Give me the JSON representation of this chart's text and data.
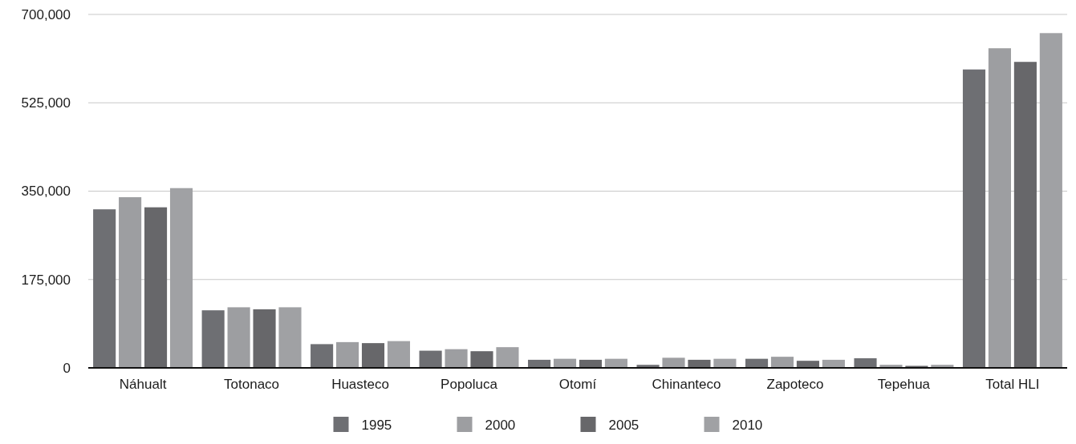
{
  "chart_data": {
    "type": "bar",
    "categories": [
      "Náhualt",
      "Totonaco",
      "Huasteco",
      "Popoluca",
      "Otomí",
      "Chinanteco",
      "Zapoteco",
      "Tepehua",
      "Total HLI"
    ],
    "series": [
      {
        "name": "1995",
        "color": "#6e6f73",
        "values": [
          314000,
          114000,
          47000,
          34000,
          16000,
          6000,
          18000,
          19000,
          591000
        ]
      },
      {
        "name": "2000",
        "color": "#9d9ea1",
        "values": [
          338000,
          120000,
          51000,
          37000,
          18000,
          20000,
          22000,
          6000,
          633000
        ]
      },
      {
        "name": "2005",
        "color": "#67676a",
        "values": [
          318000,
          116000,
          49000,
          33000,
          16000,
          16000,
          14000,
          4000,
          606000
        ]
      },
      {
        "name": "2010",
        "color": "#a0a1a4",
        "values": [
          356000,
          120000,
          53000,
          41000,
          18000,
          18000,
          16000,
          6000,
          663000
        ]
      }
    ],
    "ylim": [
      0,
      700000
    ],
    "yticks": [
      0,
      {
        "value": 175000,
        "label": "175,000"
      },
      {
        "value": 350000,
        "label": "350,000"
      },
      {
        "value": 525000,
        "label": "525,000"
      },
      {
        "value": 700000,
        "label": "700,000"
      }
    ],
    "grid": "y",
    "legend": "bottom"
  }
}
